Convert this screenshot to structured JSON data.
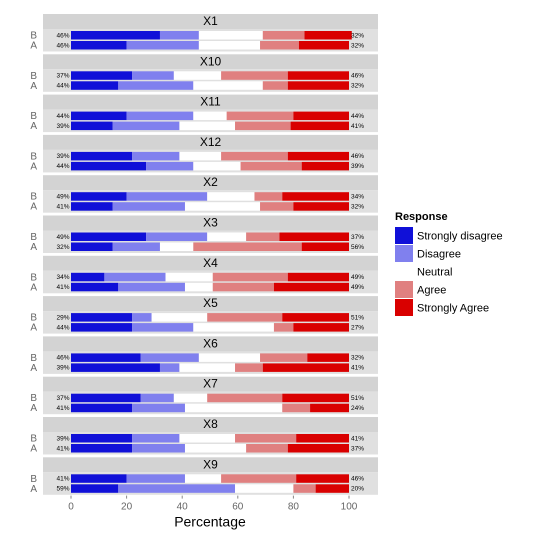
{
  "chart_data": {
    "type": "bar",
    "subtype": "diverging-stacked-likert",
    "xlabel": "Percentage",
    "xlim": [
      0,
      100
    ],
    "xticks": [
      "0",
      "20",
      "40",
      "60",
      "80",
      "100"
    ],
    "legend": {
      "title": "Response",
      "position": "right",
      "items": [
        {
          "label": "Strongly disagree",
          "color": "#1010d8"
        },
        {
          "label": "Disagree",
          "color": "#8080ee"
        },
        {
          "label": "Neutral",
          "color": "#ffffff"
        },
        {
          "label": "Agree",
          "color": "#e08080"
        },
        {
          "label": "Strongly Agree",
          "color": "#d90000"
        }
      ]
    },
    "panel_background": "#e0e0e0",
    "strip_background": "#d3d3d3",
    "panels": [
      {
        "name": "X1",
        "rows": [
          {
            "label": "B",
            "left_pct": "46%",
            "right_pct": "32%",
            "values": [
              32,
              14,
              23,
              15,
              17
            ]
          },
          {
            "label": "A",
            "left_pct": "46%",
            "right_pct": "32%",
            "values": [
              20,
              26,
              22,
              14,
              18
            ]
          }
        ]
      },
      {
        "name": "X10",
        "rows": [
          {
            "label": "B",
            "left_pct": "37%",
            "right_pct": "46%",
            "values": [
              22,
              15,
              17,
              24,
              22
            ]
          },
          {
            "label": "A",
            "left_pct": "44%",
            "right_pct": "32%",
            "values": [
              17,
              27,
              25,
              9,
              22
            ]
          }
        ]
      },
      {
        "name": "X11",
        "rows": [
          {
            "label": "B",
            "left_pct": "44%",
            "right_pct": "44%",
            "values": [
              20,
              24,
              12,
              24,
              20
            ]
          },
          {
            "label": "A",
            "left_pct": "39%",
            "right_pct": "41%",
            "values": [
              15,
              24,
              20,
              20,
              21
            ]
          }
        ]
      },
      {
        "name": "X12",
        "rows": [
          {
            "label": "B",
            "left_pct": "39%",
            "right_pct": "46%",
            "values": [
              22,
              17,
              15,
              24,
              22
            ]
          },
          {
            "label": "A",
            "left_pct": "44%",
            "right_pct": "39%",
            "values": [
              27,
              17,
              17,
              22,
              17
            ]
          }
        ]
      },
      {
        "name": "X2",
        "rows": [
          {
            "label": "B",
            "left_pct": "49%",
            "right_pct": "34%",
            "values": [
              20,
              29,
              17,
              10,
              24
            ]
          },
          {
            "label": "A",
            "left_pct": "41%",
            "right_pct": "32%",
            "values": [
              15,
              26,
              27,
              12,
              20
            ]
          }
        ]
      },
      {
        "name": "X3",
        "rows": [
          {
            "label": "B",
            "left_pct": "49%",
            "right_pct": "37%",
            "values": [
              27,
              22,
              14,
              12,
              25
            ]
          },
          {
            "label": "A",
            "left_pct": "32%",
            "right_pct": "56%",
            "values": [
              15,
              17,
              12,
              39,
              17
            ]
          }
        ]
      },
      {
        "name": "X4",
        "rows": [
          {
            "label": "B",
            "left_pct": "34%",
            "right_pct": "49%",
            "values": [
              12,
              22,
              17,
              27,
              22
            ]
          },
          {
            "label": "A",
            "left_pct": "41%",
            "right_pct": "49%",
            "values": [
              17,
              24,
              10,
              22,
              27
            ]
          }
        ]
      },
      {
        "name": "X5",
        "rows": [
          {
            "label": "B",
            "left_pct": "29%",
            "right_pct": "51%",
            "values": [
              22,
              7,
              20,
              27,
              24
            ]
          },
          {
            "label": "A",
            "left_pct": "44%",
            "right_pct": "27%",
            "values": [
              22,
              22,
              29,
              7,
              20
            ]
          }
        ]
      },
      {
        "name": "X6",
        "rows": [
          {
            "label": "B",
            "left_pct": "46%",
            "right_pct": "32%",
            "values": [
              25,
              21,
              22,
              17,
              15
            ]
          },
          {
            "label": "A",
            "left_pct": "39%",
            "right_pct": "41%",
            "values": [
              32,
              7,
              20,
              10,
              31
            ]
          }
        ]
      },
      {
        "name": "X7",
        "rows": [
          {
            "label": "B",
            "left_pct": "37%",
            "right_pct": "51%",
            "values": [
              25,
              12,
              12,
              27,
              24
            ]
          },
          {
            "label": "A",
            "left_pct": "41%",
            "right_pct": "24%",
            "values": [
              22,
              19,
              35,
              10,
              14
            ]
          }
        ]
      },
      {
        "name": "X8",
        "rows": [
          {
            "label": "B",
            "left_pct": "39%",
            "right_pct": "41%",
            "values": [
              22,
              17,
              20,
              22,
              19
            ]
          },
          {
            "label": "A",
            "left_pct": "41%",
            "right_pct": "37%",
            "values": [
              22,
              19,
              22,
              15,
              22
            ]
          }
        ]
      },
      {
        "name": "X9",
        "rows": [
          {
            "label": "B",
            "left_pct": "41%",
            "right_pct": "46%",
            "values": [
              20,
              21,
              13,
              27,
              19
            ]
          },
          {
            "label": "A",
            "left_pct": "59%",
            "right_pct": "20%",
            "values": [
              17,
              42,
              21,
              8,
              12
            ]
          }
        ]
      }
    ]
  }
}
